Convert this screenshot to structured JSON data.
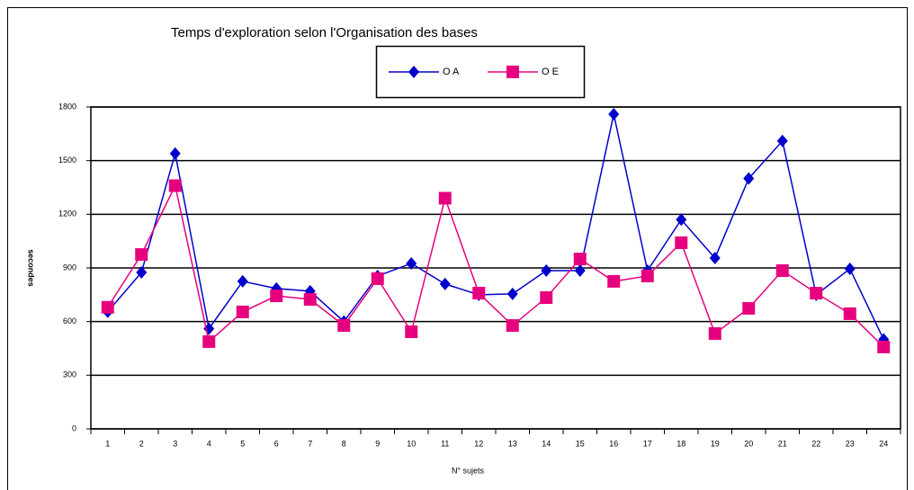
{
  "chart_data": {
    "type": "line",
    "title": "Temps d'exploration  selon l'Organisation des bases",
    "x_label": "N° sujets",
    "y_label": "secondes",
    "categories": [
      "1",
      "2",
      "3",
      "4",
      "5",
      "6",
      "7",
      "8",
      "9",
      "10",
      "11",
      "12",
      "13",
      "14",
      "15",
      "16",
      "17",
      "18",
      "19",
      "20",
      "21",
      "22",
      "23",
      "24"
    ],
    "series": [
      {
        "name": "O A",
        "color": "#0000cc",
        "marker": "diamond",
        "values": [
          655,
          875,
          1540,
          560,
          825,
          785,
          770,
          600,
          855,
          925,
          810,
          750,
          755,
          885,
          885,
          1760,
          885,
          1170,
          955,
          1400,
          1610,
          750,
          895,
          500
        ]
      },
      {
        "name": "O E",
        "color": "#e6007e",
        "marker": "square",
        "values": [
          680,
          975,
          1360,
          488,
          654,
          744,
          724,
          578,
          840,
          543,
          1290,
          759,
          578,
          734,
          950,
          825,
          855,
          1041,
          533,
          674,
          885,
          759,
          644,
          458
        ]
      }
    ],
    "ylim": [
      0,
      1800
    ],
    "yticks": [
      0,
      300,
      600,
      900,
      1200,
      1500,
      1800
    ],
    "grid": true,
    "legend": "top"
  }
}
